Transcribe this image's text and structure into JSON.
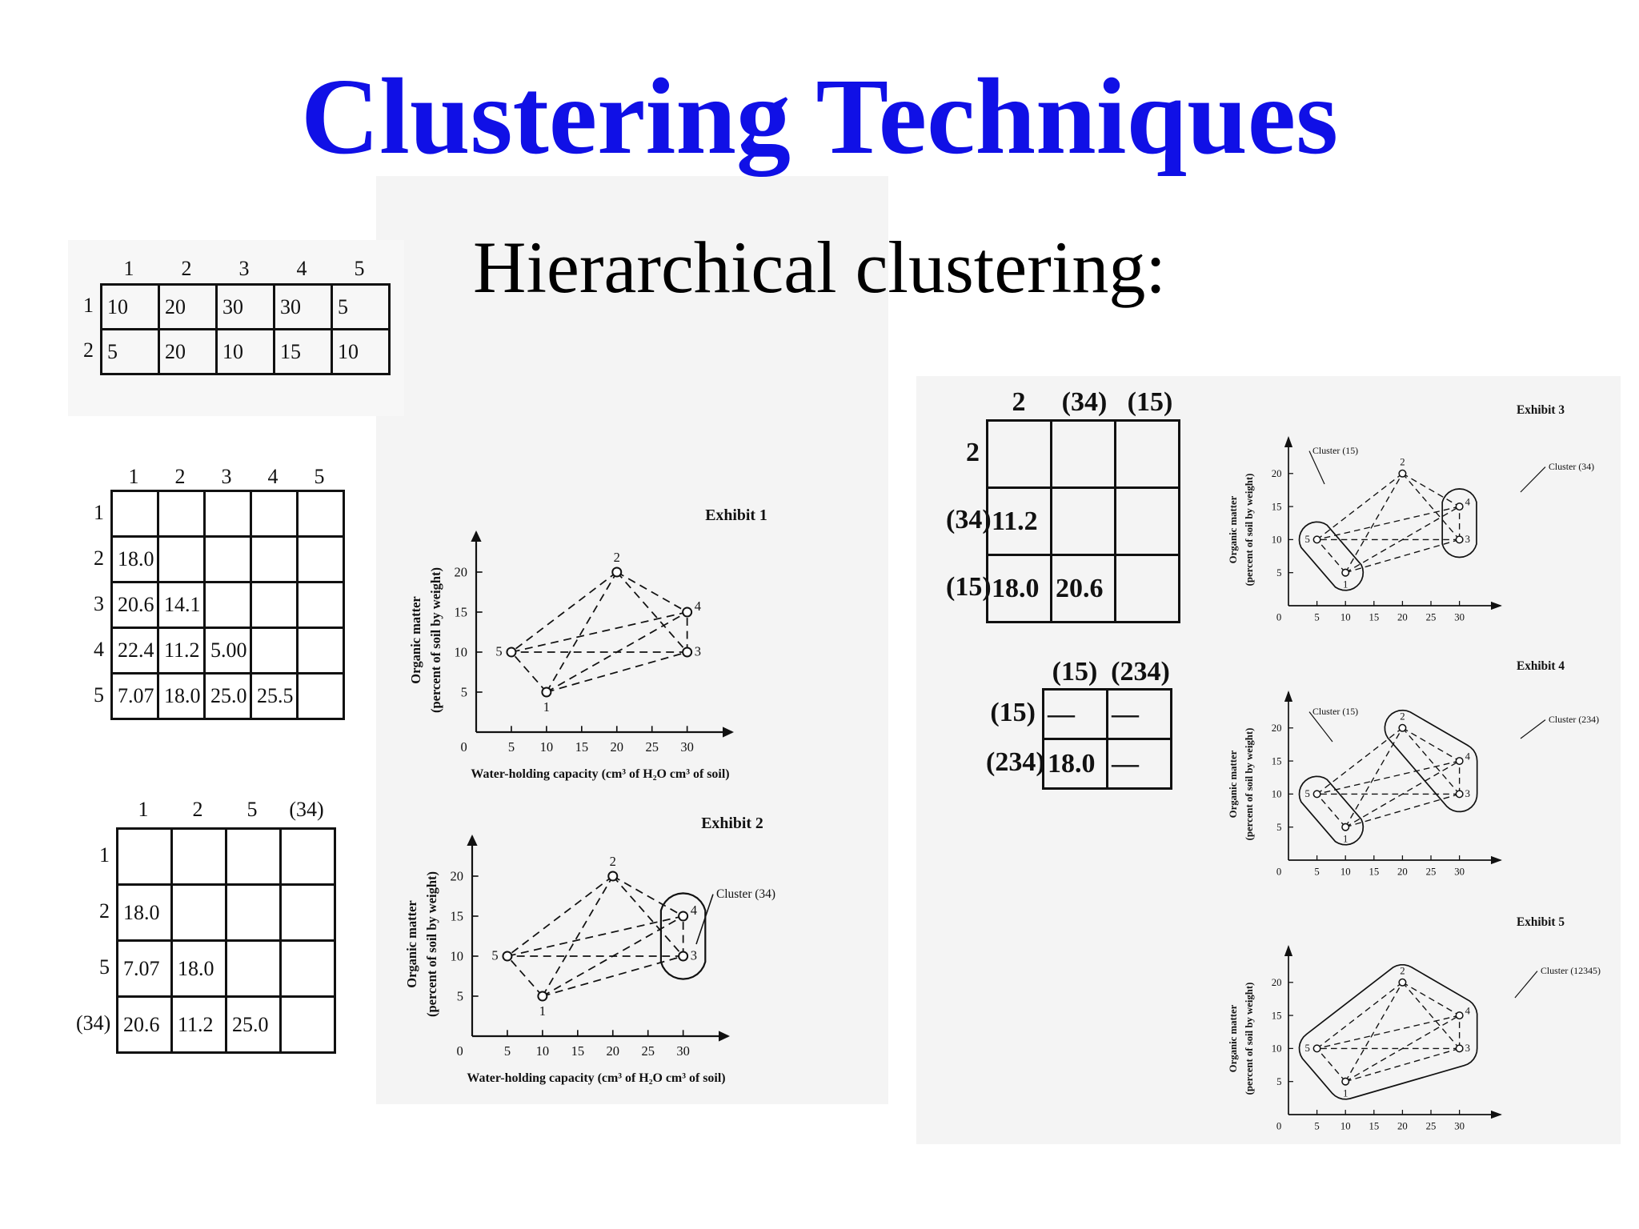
{
  "slide": {
    "title": "Clustering Techniques",
    "subtitle": "Hierarchical clustering:"
  },
  "data_table": {
    "col_labels": [
      "1",
      "2",
      "3",
      "4",
      "5"
    ],
    "row_labels": [
      "1",
      "2"
    ],
    "rows": [
      [
        "10",
        "20",
        "30",
        "30",
        "5"
      ],
      [
        "5",
        "20",
        "10",
        "15",
        "10"
      ]
    ]
  },
  "matrix1": {
    "col_labels": [
      "1",
      "2",
      "3",
      "4",
      "5"
    ],
    "row_labels": [
      "1",
      "2",
      "3",
      "4",
      "5"
    ],
    "rows": [
      [
        "",
        "",
        "",
        "",
        ""
      ],
      [
        "18.0",
        "",
        "",
        "",
        ""
      ],
      [
        "20.6",
        "14.1",
        "",
        "",
        ""
      ],
      [
        "22.4",
        "11.2",
        "5.00",
        "",
        ""
      ],
      [
        "7.07",
        "18.0",
        "25.0",
        "25.5",
        ""
      ]
    ]
  },
  "matrix2": {
    "col_labels": [
      "1",
      "2",
      "5",
      "(34)"
    ],
    "row_labels": [
      "1",
      "2",
      "5",
      "(34)"
    ],
    "rows": [
      [
        "",
        "",
        "",
        ""
      ],
      [
        "18.0",
        "",
        "",
        ""
      ],
      [
        "7.07",
        "18.0",
        "",
        ""
      ],
      [
        "20.6",
        "11.2",
        "25.0",
        ""
      ]
    ]
  },
  "matrix3": {
    "col_labels": [
      "2",
      "(34)",
      "(15)"
    ],
    "row_labels": [
      "2",
      "(34)",
      "(15)"
    ],
    "rows": [
      [
        "",
        "",
        ""
      ],
      [
        "11.2",
        "",
        ""
      ],
      [
        "18.0",
        "20.6",
        ""
      ]
    ]
  },
  "matrix4": {
    "col_labels": [
      "(15)",
      "(234)"
    ],
    "row_labels": [
      "(15)",
      "(234)"
    ],
    "rows": [
      [
        "—",
        "—"
      ],
      [
        "18.0",
        "—"
      ]
    ]
  },
  "axis_text": {
    "xlabel": "Water-holding capacity (cm³ of H₂O cm³ of soil)",
    "ylabel1": "Organic matter",
    "ylabel2": "(percent of soil by weight)",
    "x_ticks": [
      "0",
      "5",
      "10",
      "15",
      "20",
      "25",
      "30"
    ],
    "y_ticks": [
      "5",
      "10",
      "15",
      "20"
    ]
  },
  "chart_data": [
    {
      "type": "scatter",
      "title": "Exhibit 1",
      "xlabel": "Water-holding capacity (cm³ of H₂O cm³ of soil)",
      "ylabel": "Organic matter (percent of soil by weight)",
      "xlim": [
        0,
        33
      ],
      "ylim": [
        0,
        23
      ],
      "points": [
        {
          "label": "1",
          "x": 10,
          "y": 5
        },
        {
          "label": "2",
          "x": 20,
          "y": 20
        },
        {
          "label": "3",
          "x": 30,
          "y": 10
        },
        {
          "label": "4",
          "x": 30,
          "y": 15
        },
        {
          "label": "5",
          "x": 5,
          "y": 10
        }
      ],
      "clusters": []
    },
    {
      "type": "scatter",
      "title": "Exhibit 2",
      "xlabel": "Water-holding capacity (cm³ of H₂O cm³ of soil)",
      "ylabel": "Organic matter (percent of soil by weight)",
      "xlim": [
        0,
        33
      ],
      "ylim": [
        0,
        23
      ],
      "points": [
        {
          "label": "1",
          "x": 10,
          "y": 5
        },
        {
          "label": "2",
          "x": 20,
          "y": 20
        },
        {
          "label": "3",
          "x": 30,
          "y": 10
        },
        {
          "label": "4",
          "x": 30,
          "y": 15
        },
        {
          "label": "5",
          "x": 5,
          "y": 10
        }
      ],
      "clusters": [
        {
          "name": "Cluster (34)",
          "members": [
            "3",
            "4"
          ]
        }
      ]
    },
    {
      "type": "scatter",
      "title": "Exhibit 3",
      "xlabel": "Water-holding capacity (cm³ of H₂O cm³ of soil)",
      "ylabel": "Organic matter (percent of soil by weight)",
      "xlim": [
        0,
        33
      ],
      "ylim": [
        0,
        23
      ],
      "points": [
        {
          "label": "1",
          "x": 10,
          "y": 5
        },
        {
          "label": "2",
          "x": 20,
          "y": 20
        },
        {
          "label": "3",
          "x": 30,
          "y": 10
        },
        {
          "label": "4",
          "x": 30,
          "y": 15
        },
        {
          "label": "5",
          "x": 5,
          "y": 10
        }
      ],
      "clusters": [
        {
          "name": "Cluster (15)",
          "members": [
            "1",
            "5"
          ]
        },
        {
          "name": "Cluster (34)",
          "members": [
            "3",
            "4"
          ]
        }
      ]
    },
    {
      "type": "scatter",
      "title": "Exhibit 4",
      "xlabel": "Water-holding capacity (cm³ of H₂O cm³ of soil)",
      "ylabel": "Organic matter (percent of soil by weight)",
      "xlim": [
        0,
        33
      ],
      "ylim": [
        0,
        23
      ],
      "points": [
        {
          "label": "1",
          "x": 10,
          "y": 5
        },
        {
          "label": "2",
          "x": 20,
          "y": 20
        },
        {
          "label": "3",
          "x": 30,
          "y": 10
        },
        {
          "label": "4",
          "x": 30,
          "y": 15
        },
        {
          "label": "5",
          "x": 5,
          "y": 10
        }
      ],
      "clusters": [
        {
          "name": "Cluster (15)",
          "members": [
            "1",
            "5"
          ]
        },
        {
          "name": "Cluster (234)",
          "members": [
            "2",
            "3",
            "4"
          ]
        }
      ]
    },
    {
      "type": "scatter",
      "title": "Exhibit 5",
      "xlabel": "Water-holding capacity (cm³ of H₂O cm³ of soil)",
      "ylabel": "Organic matter (percent of soil by weight)",
      "xlim": [
        0,
        33
      ],
      "ylim": [
        0,
        23
      ],
      "points": [
        {
          "label": "1",
          "x": 10,
          "y": 5
        },
        {
          "label": "2",
          "x": 20,
          "y": 20
        },
        {
          "label": "3",
          "x": 30,
          "y": 10
        },
        {
          "label": "4",
          "x": 30,
          "y": 15
        },
        {
          "label": "5",
          "x": 5,
          "y": 10
        }
      ],
      "clusters": [
        {
          "name": "Cluster (12345)",
          "members": [
            "1",
            "2",
            "3",
            "4",
            "5"
          ]
        }
      ]
    }
  ]
}
